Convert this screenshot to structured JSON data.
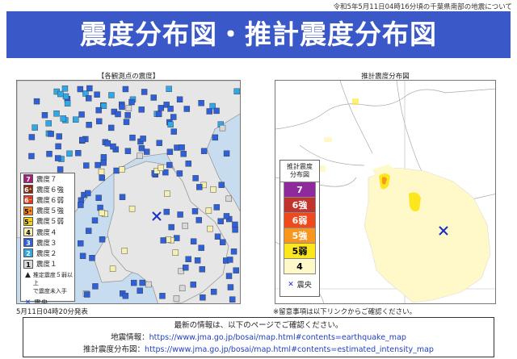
{
  "header": {
    "note": "令和5年5月11日04時16分頃の千葉県南部の地震について",
    "title": "震度分布図・推計震度分布図"
  },
  "left_panel": {
    "title": "【各観測点の震度】",
    "caption": "5月11日04時20分発表",
    "legend": [
      {
        "label": "震度７",
        "glyph": "7",
        "bg": "#a0207a",
        "fg": "#ffffff"
      },
      {
        "label": "震度６強",
        "glyph": "6⁺",
        "bg": "#8a2a10",
        "fg": "#ffffff"
      },
      {
        "label": "震度６弱",
        "glyph": "6⁻",
        "bg": "#e03c1c",
        "fg": "#ffffff"
      },
      {
        "label": "震度５強",
        "glyph": "5⁺",
        "bg": "#ff8a1a",
        "fg": "#000000"
      },
      {
        "label": "震度５弱",
        "glyph": "5⁻",
        "bg": "#f2d21a",
        "fg": "#000000"
      },
      {
        "label": "震度４",
        "glyph": "4",
        "bg": "#f5f0b0",
        "fg": "#000000"
      },
      {
        "label": "震度３",
        "glyph": "3",
        "bg": "#3060d8",
        "fg": "#ffffff"
      },
      {
        "label": "震度２",
        "glyph": "2",
        "bg": "#30a8e8",
        "fg": "#ffffff"
      },
      {
        "label": "震度１",
        "glyph": "1",
        "bg": "#d8d8d8",
        "fg": "#000000"
      }
    ],
    "legend_note_1": "推定震度５弱以上",
    "legend_note_2": "で震度未入手",
    "epicenter_label": "震央"
  },
  "right_panel": {
    "title": "推計震度分布図",
    "caption": "※留意事項は以下リンクからご確認ください。",
    "legend_title_1": "推計震度",
    "legend_title_2": "分布図",
    "legend": [
      {
        "label": "7",
        "bg": "#8e2a9c",
        "fg": "#ffffff"
      },
      {
        "label": "6強",
        "bg": "#c0342c",
        "fg": "#ffffff"
      },
      {
        "label": "6弱",
        "bg": "#ee4a1e",
        "fg": "#ffffff"
      },
      {
        "label": "5強",
        "bg": "#f8961e",
        "fg": "#ffffff"
      },
      {
        "label": "5弱",
        "bg": "#fce61e",
        "fg": "#000000"
      },
      {
        "label": "4",
        "bg": "#fff8c8",
        "fg": "#000000"
      }
    ],
    "epicenter_label": "震央"
  },
  "footer": {
    "line1": "最新の情報は、以下のページでご確認ください。",
    "line2_label": "地震情報：",
    "line2_url": "https://www.jma.go.jp/bosai/map.html#contents=earthquake_map",
    "line3_label": "推計震度分布図：",
    "line3_url": "https://www.jma.go.jp/bosai/map.html#contents=estimated_intensity_map"
  }
}
